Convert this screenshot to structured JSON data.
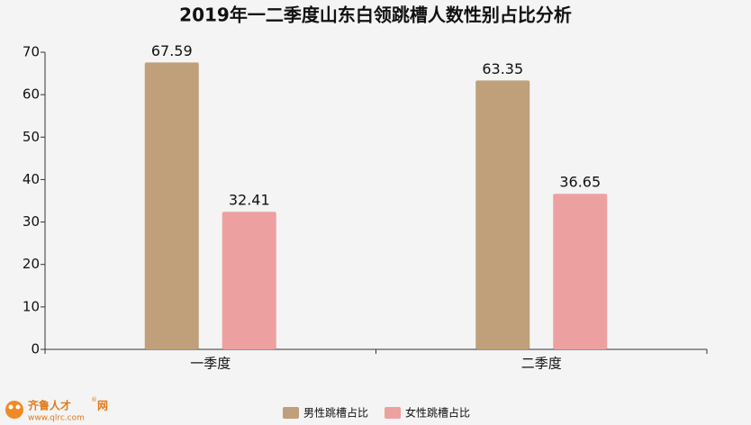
{
  "chart_data": {
    "type": "bar",
    "title": "2019年一二季度山东白领跳槽人数性别占比分析",
    "categories": [
      "一季度",
      "二季度"
    ],
    "series": [
      {
        "name": "男性跳槽占比",
        "color": "#bfa07a",
        "values": [
          67.59,
          63.35
        ]
      },
      {
        "name": "女性跳槽占比",
        "color": "#eda0a0",
        "values": [
          32.41,
          36.65
        ]
      }
    ],
    "ylim": [
      0,
      70
    ],
    "yticks": [
      0,
      10,
      20,
      30,
      40,
      50,
      60,
      70
    ],
    "legend": "bottom",
    "watermark": {
      "brand": "齐鲁人才",
      "mark": "®",
      "suffix": "网",
      "url": "www.qlrc.com"
    }
  }
}
